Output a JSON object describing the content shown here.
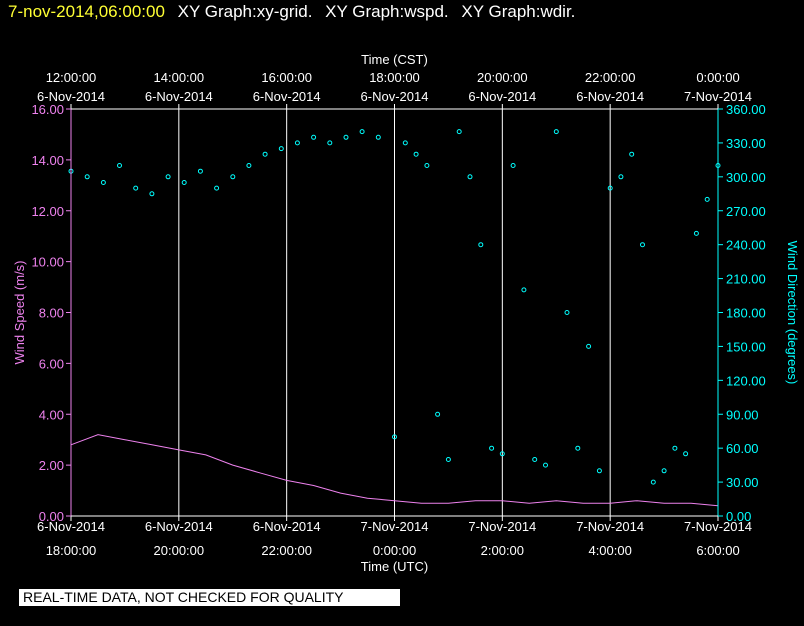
{
  "header": {
    "timestamp": "7-nov-2014,06:00:00",
    "graphs": [
      "XY Graph:xy-grid.",
      "XY Graph:wspd.",
      "XY Graph:wdir."
    ]
  },
  "disclaimer": "REAL-TIME DATA, NOT CHECKED FOR QUALITY",
  "colors": {
    "speed": "#ee82ee",
    "direction": "#00ffff",
    "grid": "#ffffff",
    "header_time": "#ffff33"
  },
  "chart_data": {
    "type": "scatter",
    "top_axis": {
      "title": "Time (CST)",
      "ticks": [
        {
          "time": "12:00:00",
          "date": "6-Nov-2014"
        },
        {
          "time": "14:00:00",
          "date": "6-Nov-2014"
        },
        {
          "time": "16:00:00",
          "date": "6-Nov-2014"
        },
        {
          "time": "18:00:00",
          "date": "6-Nov-2014"
        },
        {
          "time": "20:00:00",
          "date": "6-Nov-2014"
        },
        {
          "time": "22:00:00",
          "date": "6-Nov-2014"
        },
        {
          "time": "0:00:00",
          "date": "7-Nov-2014"
        }
      ]
    },
    "bottom_axis": {
      "title": "Time (UTC)",
      "ticks": [
        {
          "date": "6-Nov-2014",
          "time": "18:00:00"
        },
        {
          "date": "6-Nov-2014",
          "time": "20:00:00"
        },
        {
          "date": "6-Nov-2014",
          "time": "22:00:00"
        },
        {
          "date": "7-Nov-2014",
          "time": "0:00:00"
        },
        {
          "date": "7-Nov-2014",
          "time": "2:00:00"
        },
        {
          "date": "7-Nov-2014",
          "time": "4:00:00"
        },
        {
          "date": "7-Nov-2014",
          "time": "6:00:00"
        }
      ],
      "range_hours_utc": [
        18,
        30
      ]
    },
    "left_axis": {
      "label": "Wind Speed (m/s)",
      "ylim": [
        0,
        16
      ],
      "tick_labels": [
        "0.00",
        "2.00",
        "4.00",
        "6.00",
        "8.00",
        "10.00",
        "12.00",
        "14.00",
        "16.00"
      ]
    },
    "right_axis": {
      "label": "Wind Direction (degrees)",
      "ylim": [
        0,
        360
      ],
      "tick_labels": [
        "0.00",
        "30.00",
        "60.00",
        "90.00",
        "120.00",
        "150.00",
        "180.00",
        "210.00",
        "240.00",
        "270.00",
        "300.00",
        "330.00",
        "360.00"
      ]
    },
    "grid": "vertical lines at 2-hour intervals",
    "series": [
      {
        "name": "wspd",
        "style": "line",
        "x_hours_utc": [
          18.0,
          18.5,
          19.0,
          19.5,
          20.0,
          20.5,
          21.0,
          21.5,
          22.0,
          22.5,
          23.0,
          23.5,
          24.0,
          24.5,
          25.0,
          25.5,
          26.0,
          26.5,
          27.0,
          27.5,
          28.0,
          28.5,
          29.0,
          29.5,
          30.0
        ],
        "values": [
          2.8,
          3.2,
          3.0,
          2.8,
          2.6,
          2.4,
          2.0,
          1.7,
          1.4,
          1.2,
          0.9,
          0.7,
          0.6,
          0.5,
          0.5,
          0.6,
          0.6,
          0.5,
          0.6,
          0.5,
          0.5,
          0.6,
          0.5,
          0.5,
          0.4
        ]
      },
      {
        "name": "wdir",
        "style": "points",
        "x_hours_utc": [
          18.0,
          18.3,
          18.6,
          18.9,
          19.2,
          19.5,
          19.8,
          20.1,
          20.4,
          20.7,
          21.0,
          21.3,
          21.6,
          21.9,
          22.2,
          22.5,
          22.8,
          23.1,
          23.4,
          23.7,
          24.0,
          24.2,
          24.4,
          24.6,
          24.8,
          25.0,
          25.2,
          25.4,
          25.6,
          25.8,
          26.0,
          26.2,
          26.4,
          26.6,
          26.8,
          27.0,
          27.2,
          27.4,
          27.6,
          27.8,
          28.0,
          28.2,
          28.4,
          28.6,
          28.8,
          29.0,
          29.2,
          29.4,
          29.6,
          29.8,
          30.0
        ],
        "values": [
          305,
          300,
          295,
          310,
          290,
          285,
          300,
          295,
          305,
          290,
          300,
          310,
          320,
          325,
          330,
          335,
          330,
          335,
          340,
          335,
          70,
          330,
          320,
          310,
          90,
          50,
          340,
          300,
          240,
          60,
          55,
          310,
          200,
          50,
          45,
          340,
          180,
          60,
          150,
          40,
          290,
          300,
          320,
          240,
          30,
          40,
          60,
          55,
          250,
          280,
          310
        ]
      }
    ]
  }
}
